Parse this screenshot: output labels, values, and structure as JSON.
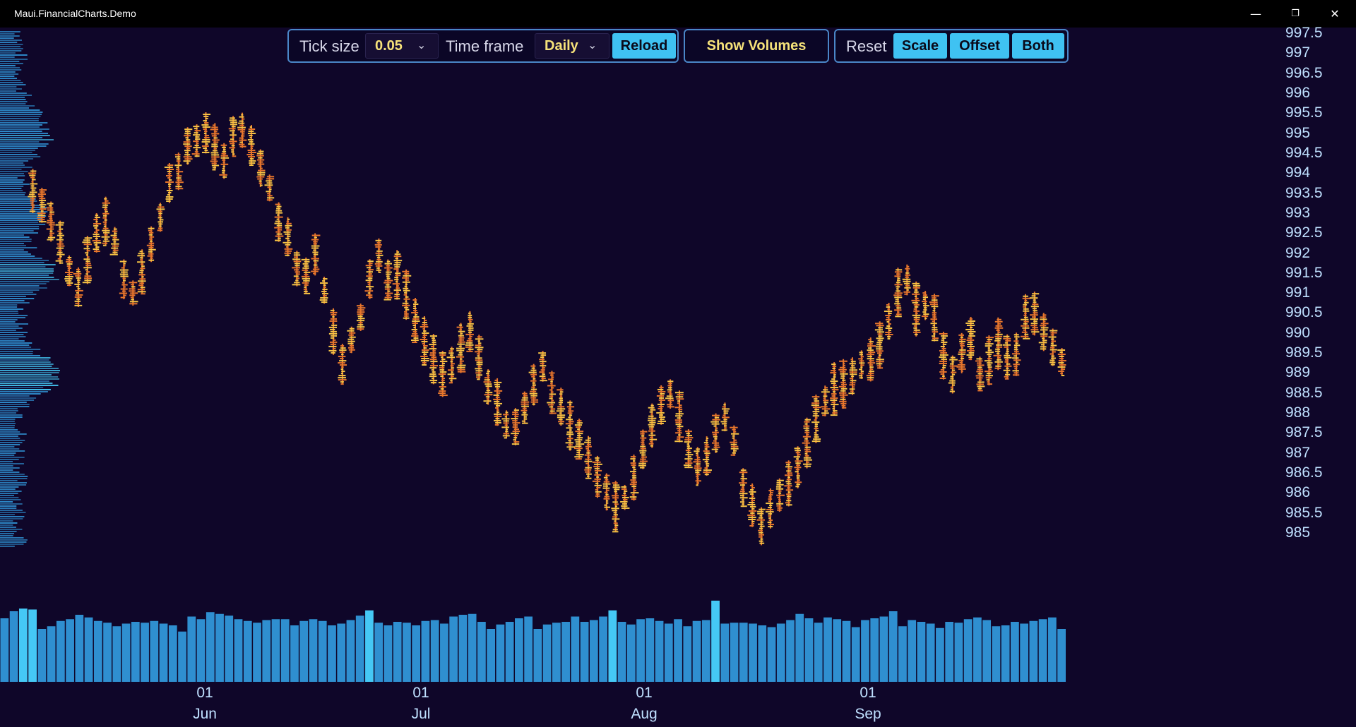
{
  "window": {
    "title": "Maui.FinancialCharts.Demo",
    "minimize_icon": "minimize-icon",
    "maximize_icon": "restore-icon",
    "close_icon": "close-icon",
    "minimize_glyph": "—",
    "restore_glyph": "❐",
    "close_glyph": "✕"
  },
  "toolbar": {
    "tick_size_label": "Tick size",
    "tick_size_value": "0.05",
    "time_frame_label": "Time frame",
    "time_frame_value": "Daily",
    "reload_label": "Reload",
    "show_volumes_label": "Show Volumes",
    "reset_label": "Reset",
    "scale_label": "Scale",
    "offset_label": "Offset",
    "both_label": "Both",
    "chevron_glyph": "⌄"
  },
  "colors": {
    "background": "#0f0629",
    "accent": "#3fc2f2",
    "candle_hot": "#f6c445",
    "candle_warm": "#e8762c",
    "volume": "#2f8fd0",
    "volume_bright": "#45c8f5",
    "axis_text": "#bfe0ff"
  },
  "chart_data": {
    "type": "footprint",
    "y_axis": {
      "min": 985,
      "max": 997.5,
      "step": 0.5,
      "tick_labels": [
        "997.5",
        "997",
        "996.5",
        "996",
        "995.5",
        "995",
        "994.5",
        "994",
        "993.5",
        "993",
        "992.5",
        "992",
        "991.5",
        "991",
        "990.5",
        "990",
        "989.5",
        "989",
        "988.5",
        "988",
        "987.5",
        "987",
        "986.5",
        "986",
        "985.5",
        "985"
      ]
    },
    "x_axis": {
      "labels": [
        {
          "day": "01",
          "month": "Jun"
        },
        {
          "day": "01",
          "month": "Jul"
        },
        {
          "day": "01",
          "month": "Aug"
        },
        {
          "day": "01",
          "month": "Sep"
        }
      ]
    },
    "price_path": [
      993.6,
      993.3,
      992.8,
      992.4,
      991.6,
      991.3,
      991.9,
      992.4,
      992.8,
      992.3,
      991.4,
      991.0,
      991.6,
      992.2,
      992.9,
      993.6,
      994.2,
      994.8,
      994.9,
      995.1,
      994.7,
      994.4,
      994.9,
      995.1,
      994.6,
      994.2,
      993.6,
      992.9,
      992.3,
      991.7,
      991.3,
      991.9,
      991.1,
      990.1,
      989.4,
      989.8,
      990.4,
      991.3,
      991.9,
      991.4,
      991.5,
      990.9,
      990.4,
      989.8,
      989.4,
      989.0,
      989.2,
      989.6,
      990.0,
      989.4,
      988.6,
      988.2,
      987.7,
      987.8,
      988.1,
      988.6,
      989.2,
      988.6,
      988.0,
      987.7,
      987.5,
      986.9,
      986.4,
      986.0,
      985.7,
      985.9,
      986.4,
      987.0,
      987.6,
      988.1,
      988.5,
      987.9,
      987.2,
      986.7,
      986.8,
      987.4,
      987.9,
      987.3,
      986.3,
      985.7,
      985.3,
      985.5,
      985.9,
      986.3,
      986.7,
      987.2,
      987.9,
      988.3,
      988.6,
      988.8,
      989.0,
      989.2,
      989.3,
      989.6,
      990.2,
      991.0,
      991.4,
      990.6,
      990.7,
      990.3,
      989.4,
      989.0,
      989.4,
      989.8,
      989.1,
      989.3,
      989.7,
      989.4,
      989.5,
      990.3,
      990.6,
      990.2,
      989.6,
      989.3
    ],
    "volume_relative": [
      0.72,
      0.8,
      0.83,
      0.82,
      0.6,
      0.63,
      0.69,
      0.71,
      0.76,
      0.73,
      0.69,
      0.67,
      0.63,
      0.66,
      0.68,
      0.67,
      0.69,
      0.66,
      0.64,
      0.57,
      0.74,
      0.71,
      0.79,
      0.77,
      0.75,
      0.71,
      0.69,
      0.67,
      0.7,
      0.71,
      0.71,
      0.64,
      0.69,
      0.71,
      0.69,
      0.64,
      0.66,
      0.7,
      0.75,
      0.81,
      0.67,
      0.64,
      0.68,
      0.67,
      0.64,
      0.69,
      0.7,
      0.66,
      0.74,
      0.76,
      0.77,
      0.68,
      0.6,
      0.65,
      0.68,
      0.72,
      0.74,
      0.6,
      0.65,
      0.67,
      0.68,
      0.74,
      0.68,
      0.7,
      0.74,
      0.81,
      0.68,
      0.65,
      0.71,
      0.72,
      0.69,
      0.66,
      0.71,
      0.63,
      0.69,
      0.7,
      0.92,
      0.66,
      0.67,
      0.67,
      0.66,
      0.64,
      0.62,
      0.66,
      0.7,
      0.77,
      0.72,
      0.67,
      0.73,
      0.71,
      0.69,
      0.62,
      0.7,
      0.72,
      0.74,
      0.8,
      0.63,
      0.7,
      0.68,
      0.66,
      0.61,
      0.68,
      0.67,
      0.71,
      0.73,
      0.7,
      0.63,
      0.64,
      0.68,
      0.66,
      0.69,
      0.71,
      0.73,
      0.6
    ],
    "grid": false,
    "legend": "none"
  }
}
